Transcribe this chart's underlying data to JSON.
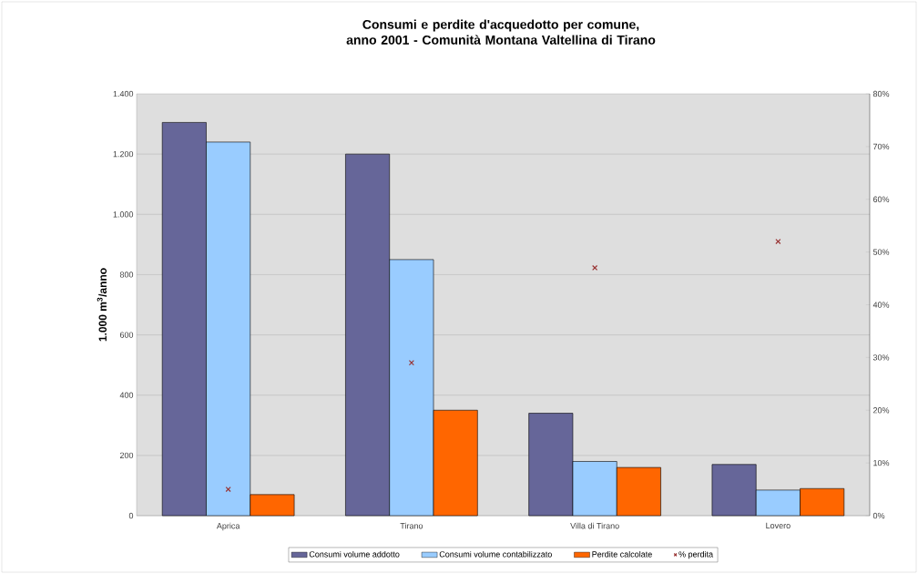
{
  "chart_data": {
    "type": "bar",
    "title": "Consumi e perdite d'acquedotto per comune, anno 2001 - Comunità Montana Valtellina di Tirano",
    "ylabel": "1.000 m$^{3}$/anno",
    "categories": [
      "Aprica",
      "Tirano",
      "Villa di Tirano",
      "Lovero"
    ],
    "series": [
      {
        "name": "Consumi volume addotto",
        "color": "#666699",
        "values": [
          1305,
          1200,
          340,
          170
        ]
      },
      {
        "name": "Consumi volume contabilizzato",
        "color": "#99ccff",
        "values": [
          1240,
          850,
          180,
          85
        ]
      },
      {
        "name": "Perdite calcolate",
        "color": "#ff6600",
        "values": [
          70,
          350,
          160,
          90
        ]
      },
      {
        "name": "% perdita",
        "type": "scatter",
        "axis": "y2",
        "marker": "cross",
        "color": "#993333",
        "values": [
          5,
          29,
          47,
          52
        ]
      }
    ],
    "ylim": [
      0,
      1400
    ],
    "yticks": [
      0,
      200,
      400,
      600,
      800,
      {
        "value": 1000,
        "label": "1.000"
      },
      {
        "value": 1200,
        "label": "1.200"
      },
      {
        "value": 1400,
        "label": "1.400"
      }
    ],
    "y2lim": [
      0,
      80
    ],
    "y2ticks": [
      {
        "value": 0,
        "label": "0%"
      },
      {
        "value": 10,
        "label": "10%"
      },
      {
        "value": 20,
        "label": "20%"
      },
      {
        "value": 30,
        "label": "30%"
      },
      {
        "value": 40,
        "label": "40%"
      },
      {
        "value": 50,
        "label": "50%"
      },
      {
        "value": 60,
        "label": "60%"
      },
      {
        "value": 70,
        "label": "70%"
      },
      {
        "value": 80,
        "label": "80%"
      }
    ],
    "grid": "y",
    "legend": "bottom"
  }
}
